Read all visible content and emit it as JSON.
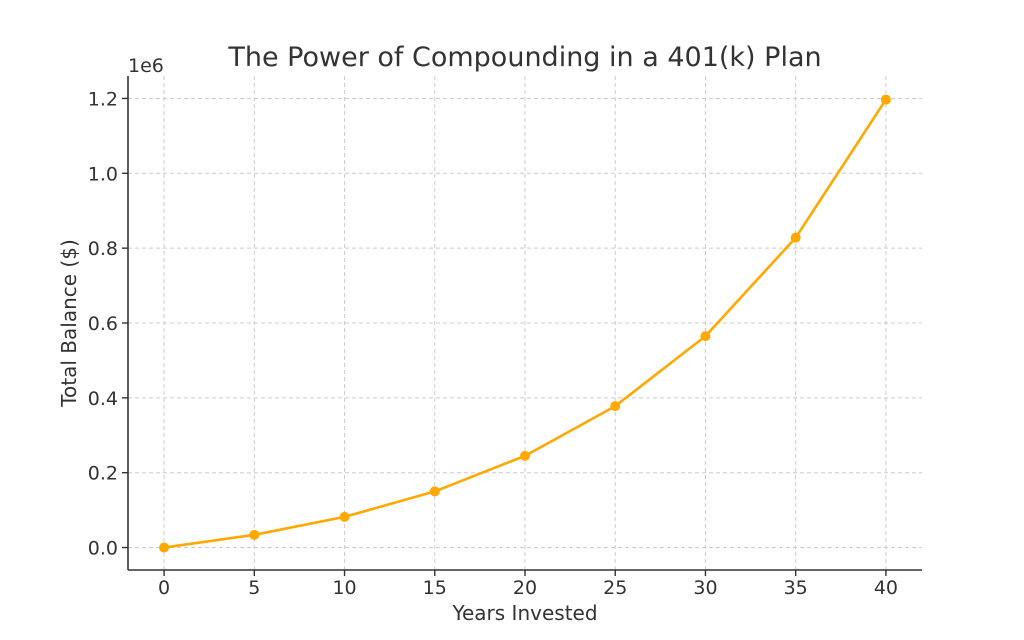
{
  "chart_data": {
    "type": "line",
    "title": "The Power of Compounding in a 401(k) Plan",
    "xlabel": "Years Invested",
    "ylabel": "Total Balance ($)",
    "y_offset_label": "1e6",
    "x": [
      0,
      5,
      10,
      15,
      20,
      25,
      30,
      35,
      40
    ],
    "series": [
      {
        "values": [
          0,
          34000,
          82000,
          150000,
          245000,
          378000,
          565000,
          828000,
          1197000
        ]
      }
    ],
    "xlim": [
      -2,
      42
    ],
    "ylim": [
      -60000,
      1260000
    ],
    "x_ticks": [
      0,
      5,
      10,
      15,
      20,
      25,
      30,
      35,
      40
    ],
    "x_tick_labels": [
      "0",
      "5",
      "10",
      "15",
      "20",
      "25",
      "30",
      "35",
      "40"
    ],
    "y_ticks": [
      0,
      200000,
      400000,
      600000,
      800000,
      1000000,
      1200000
    ],
    "y_tick_labels": [
      "0.0",
      "0.2",
      "0.4",
      "0.6",
      "0.8",
      "1.0",
      "1.2"
    ],
    "grid": true,
    "line_color": "#FFA800",
    "marker": "circle"
  }
}
